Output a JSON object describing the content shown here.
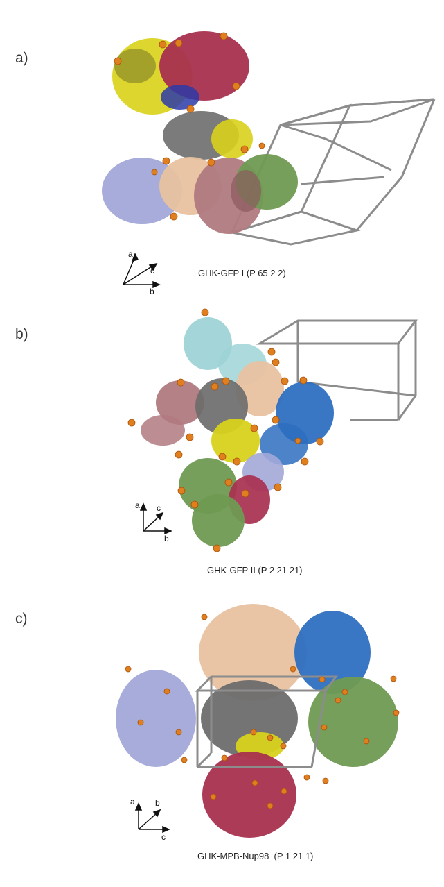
{
  "panels": [
    {
      "label": "a)",
      "caption": "GHK-GFP I (P 65 2 2)",
      "axes": {
        "up": "a",
        "diag": "c",
        "right": "b"
      }
    },
    {
      "label": "b)",
      "caption": "GHK-GFP II (P 2 21 21)",
      "axes": {
        "up": "a",
        "diag": "c",
        "right": "b"
      }
    },
    {
      "label": "c)",
      "caption": "GHK-MPB-Nup98  (P 1 21 1)",
      "axes": {
        "up": "a",
        "diag": "b",
        "right": "c"
      }
    }
  ],
  "colors": {
    "unit_cell": "#8c8c8c",
    "ion_sphere": "#e07f1e",
    "yellow": "#d9d21c",
    "crimson": "#a8304f",
    "grey": "#6d6d6d",
    "periwinkle": "#a3a8d8",
    "peach": "#e8c2a0",
    "rose": "#b07a80",
    "green": "#6f9a52",
    "cyan": "#9fd3d6",
    "blue": "#2e6fc0",
    "olive": "#8a8a2a",
    "navy": "#2b3aa8"
  }
}
